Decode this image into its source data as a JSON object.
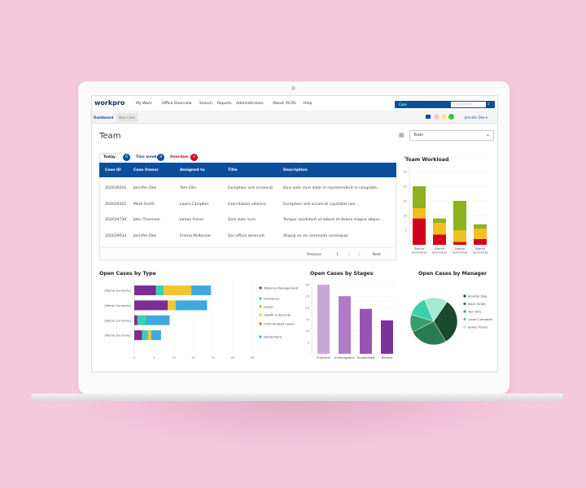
{
  "header": {
    "logo": "workpro",
    "nav": [
      "My Work",
      "Office Overview",
      "Search",
      "Reports",
      "Administration",
      "About",
      "ACAS",
      "Help"
    ],
    "case_select": "Case",
    "search_placeholder": "Quick search",
    "user": "Jennifer Doe"
  },
  "subtabs": [
    "Dashboard",
    "New Case"
  ],
  "page_title": "Team",
  "team_select": "Team",
  "table": {
    "tabs": [
      {
        "label": "Today",
        "count": "6"
      },
      {
        "label": "This week",
        "count": "8"
      },
      {
        "label": "Overdue",
        "count": "0"
      }
    ],
    "columns": [
      "Case ID",
      "Case Owner",
      "Assigned to",
      "Title",
      "Description"
    ],
    "rows": [
      [
        "202039202",
        "Jennifer Doe",
        "Tom Ellis",
        "Excepteur sint occaecat",
        "Duis aute irure dolor in reprehenderit in voluptate..."
      ],
      [
        "202029302",
        "Mark Smith",
        "Laura Campbel",
        "Exercitation ullamco",
        "Excepteur sint occaecat cupidatat non..."
      ],
      [
        "202034739",
        "John Thomson",
        "James Fraser",
        "Duis aute irure",
        "Tempor incididunt ut labore et dolore magna aliqua..."
      ],
      [
        "202029033",
        "Jennifer Doe",
        "Emma McKenzie",
        "Qui officia deserunt",
        "Aliquip ex ea commodo consequat."
      ]
    ],
    "pagination": [
      "Previous",
      "1",
      "2",
      "3",
      "Next"
    ]
  },
  "colors": {
    "brand": "#0b4f9c",
    "overdue": "#d0021b",
    "pink_bg": "#f6c8dc"
  },
  "chart_data": [
    {
      "id": "workload",
      "type": "bar",
      "stacked": true,
      "title": "Team Workload",
      "categories": [
        "[Name Surname]",
        "[Name Surname]",
        "[Name Surname]",
        "[Name Surname]"
      ],
      "ylim": [
        0,
        30
      ],
      "yticks": [
        5,
        10,
        15,
        20,
        25,
        30
      ],
      "series": [
        {
          "color": "#d0021b",
          "values": [
            9,
            3.5,
            1,
            2
          ]
        },
        {
          "color": "#f0c020",
          "values": [
            3.5,
            4,
            4,
            3.5
          ]
        },
        {
          "color": "#8fb020",
          "values": [
            7.5,
            1.5,
            10,
            1.5
          ]
        }
      ]
    },
    {
      "id": "type",
      "type": "bar",
      "orientation": "horizontal",
      "stacked": true,
      "title": "Open Cases by Type",
      "categories": [
        "[Name Surname]",
        "[Name Surname]",
        "[Name Surname]",
        "[Name Surname]"
      ],
      "xlim": [
        0,
        30
      ],
      "xticks": [
        0,
        5,
        10,
        15,
        20,
        25,
        30
      ],
      "legend": "right",
      "series": [
        {
          "name": "Absence Management",
          "color": "#7b2d90",
          "values": [
            5.5,
            8.5,
            0.8,
            2
          ]
        },
        {
          "name": "Grievance",
          "color": "#36d1b0",
          "values": [
            2,
            0,
            2.2,
            1.5
          ]
        },
        {
          "name": "Leave",
          "color": "#a6c41c",
          "values": [
            0,
            0,
            0,
            0
          ]
        },
        {
          "name": "Health & Security",
          "color": "#f5c431",
          "values": [
            7,
            2,
            0,
            0.8
          ]
        },
        {
          "name": "Child Related Leave",
          "color": "#e05a1a",
          "values": [
            0,
            0,
            0,
            0
          ]
        },
        {
          "name": "Disciplinary",
          "color": "#3fa9e0",
          "values": [
            5,
            8,
            6,
            2.5
          ]
        }
      ]
    },
    {
      "id": "stages",
      "type": "bar",
      "title": "Open Cases by Stages",
      "categories": [
        "Frontline",
        "Investigation",
        "Suspended",
        "Review"
      ],
      "values": [
        30,
        25,
        19.5,
        14.5
      ],
      "colors": [
        "#c9a6d8",
        "#b07cc8",
        "#9656b4",
        "#7a3398"
      ],
      "ylim": [
        0,
        30
      ],
      "yticks": [
        5,
        10,
        15,
        20,
        25,
        30
      ]
    },
    {
      "id": "manager",
      "type": "pie",
      "title": "Open Cases by Manager",
      "legend": "right",
      "labels": [
        "Jennifer Doe",
        "Mark Smith",
        "Tom Ellis",
        "Laura Campbell",
        "James Fraser"
      ],
      "values": [
        32,
        26,
        12,
        14,
        16
      ],
      "colors": [
        "#1a4a30",
        "#2a7a52",
        "#3a9a6a",
        "#3cd0a8",
        "#a8e8d0"
      ]
    }
  ]
}
